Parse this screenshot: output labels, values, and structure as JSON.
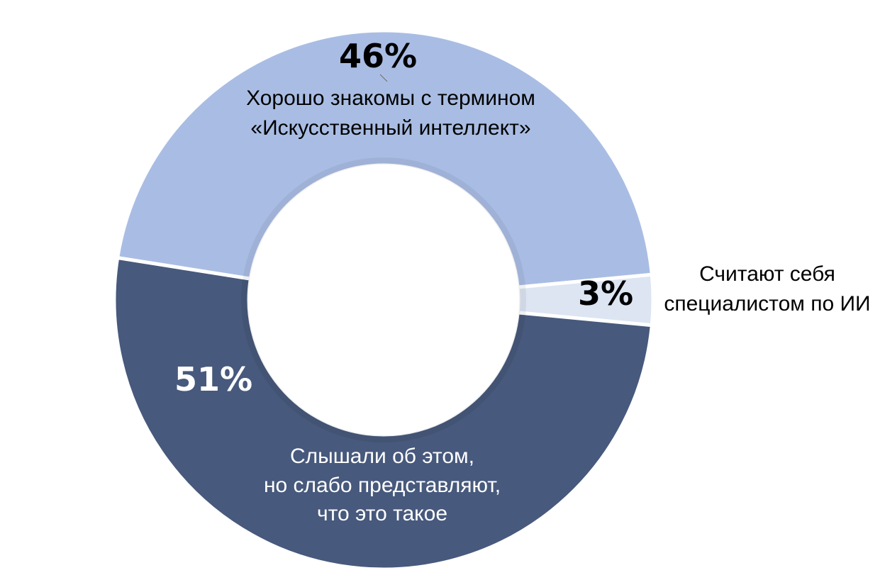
{
  "chart_data": {
    "type": "pie",
    "slices": [
      {
        "label_lines": [
          "Хорошо знакомы с термином",
          "«Искусственный интеллект»"
        ],
        "value": 46,
        "value_label": "46%",
        "color": "#a9bde4",
        "value_color": "#000000",
        "label_color": "#000000"
      },
      {
        "label_lines": [
          "Считают себя",
          "специалистом по ИИ"
        ],
        "value": 3,
        "value_label": "3%",
        "color": "#dde5f3",
        "value_color": "#000000",
        "label_color": "#000000"
      },
      {
        "label_lines": [
          "Слышали об этом,",
          "но слабо представляют,",
          "что это такое"
        ],
        "value": 51,
        "value_label": "51%",
        "color": "#47597c",
        "value_color": "#ffffff",
        "label_color": "#ffffff"
      }
    ]
  }
}
